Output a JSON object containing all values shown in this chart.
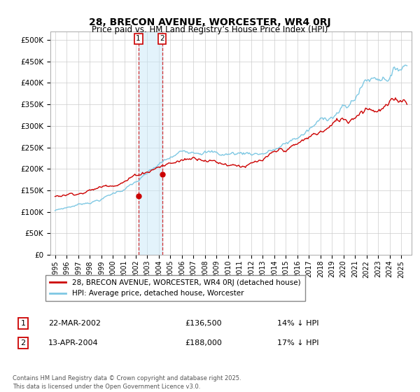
{
  "title": "28, BRECON AVENUE, WORCESTER, WR4 0RJ",
  "subtitle": "Price paid vs. HM Land Registry’s House Price Index (HPI)",
  "ylabel_ticks": [
    "£0",
    "£50K",
    "£100K",
    "£150K",
    "£200K",
    "£250K",
    "£300K",
    "£350K",
    "£400K",
    "£450K",
    "£500K"
  ],
  "ytick_vals": [
    0,
    50000,
    100000,
    150000,
    200000,
    250000,
    300000,
    350000,
    400000,
    450000,
    500000
  ],
  "ylim": [
    0,
    520000
  ],
  "legend_line1": "28, BRECON AVENUE, WORCESTER, WR4 0RJ (detached house)",
  "legend_line2": "HPI: Average price, detached house, Worcester",
  "sale1_label": "1",
  "sale1_date": "22-MAR-2002",
  "sale1_price": "£136,500",
  "sale1_hpi": "14% ↓ HPI",
  "sale2_label": "2",
  "sale2_date": "13-APR-2004",
  "sale2_price": "£188,000",
  "sale2_hpi": "17% ↓ HPI",
  "footnote": "Contains HM Land Registry data © Crown copyright and database right 2025.\nThis data is licensed under the Open Government Licence v3.0.",
  "hpi_color": "#7ec8e3",
  "price_color": "#cc0000",
  "sale1_x": 2002.22,
  "sale2_x": 2004.28,
  "sale1_y": 136500,
  "sale2_y": 188000,
  "background_color": "#ffffff",
  "grid_color": "#cccccc",
  "xlim_left": 1994.6,
  "xlim_right": 2025.9
}
